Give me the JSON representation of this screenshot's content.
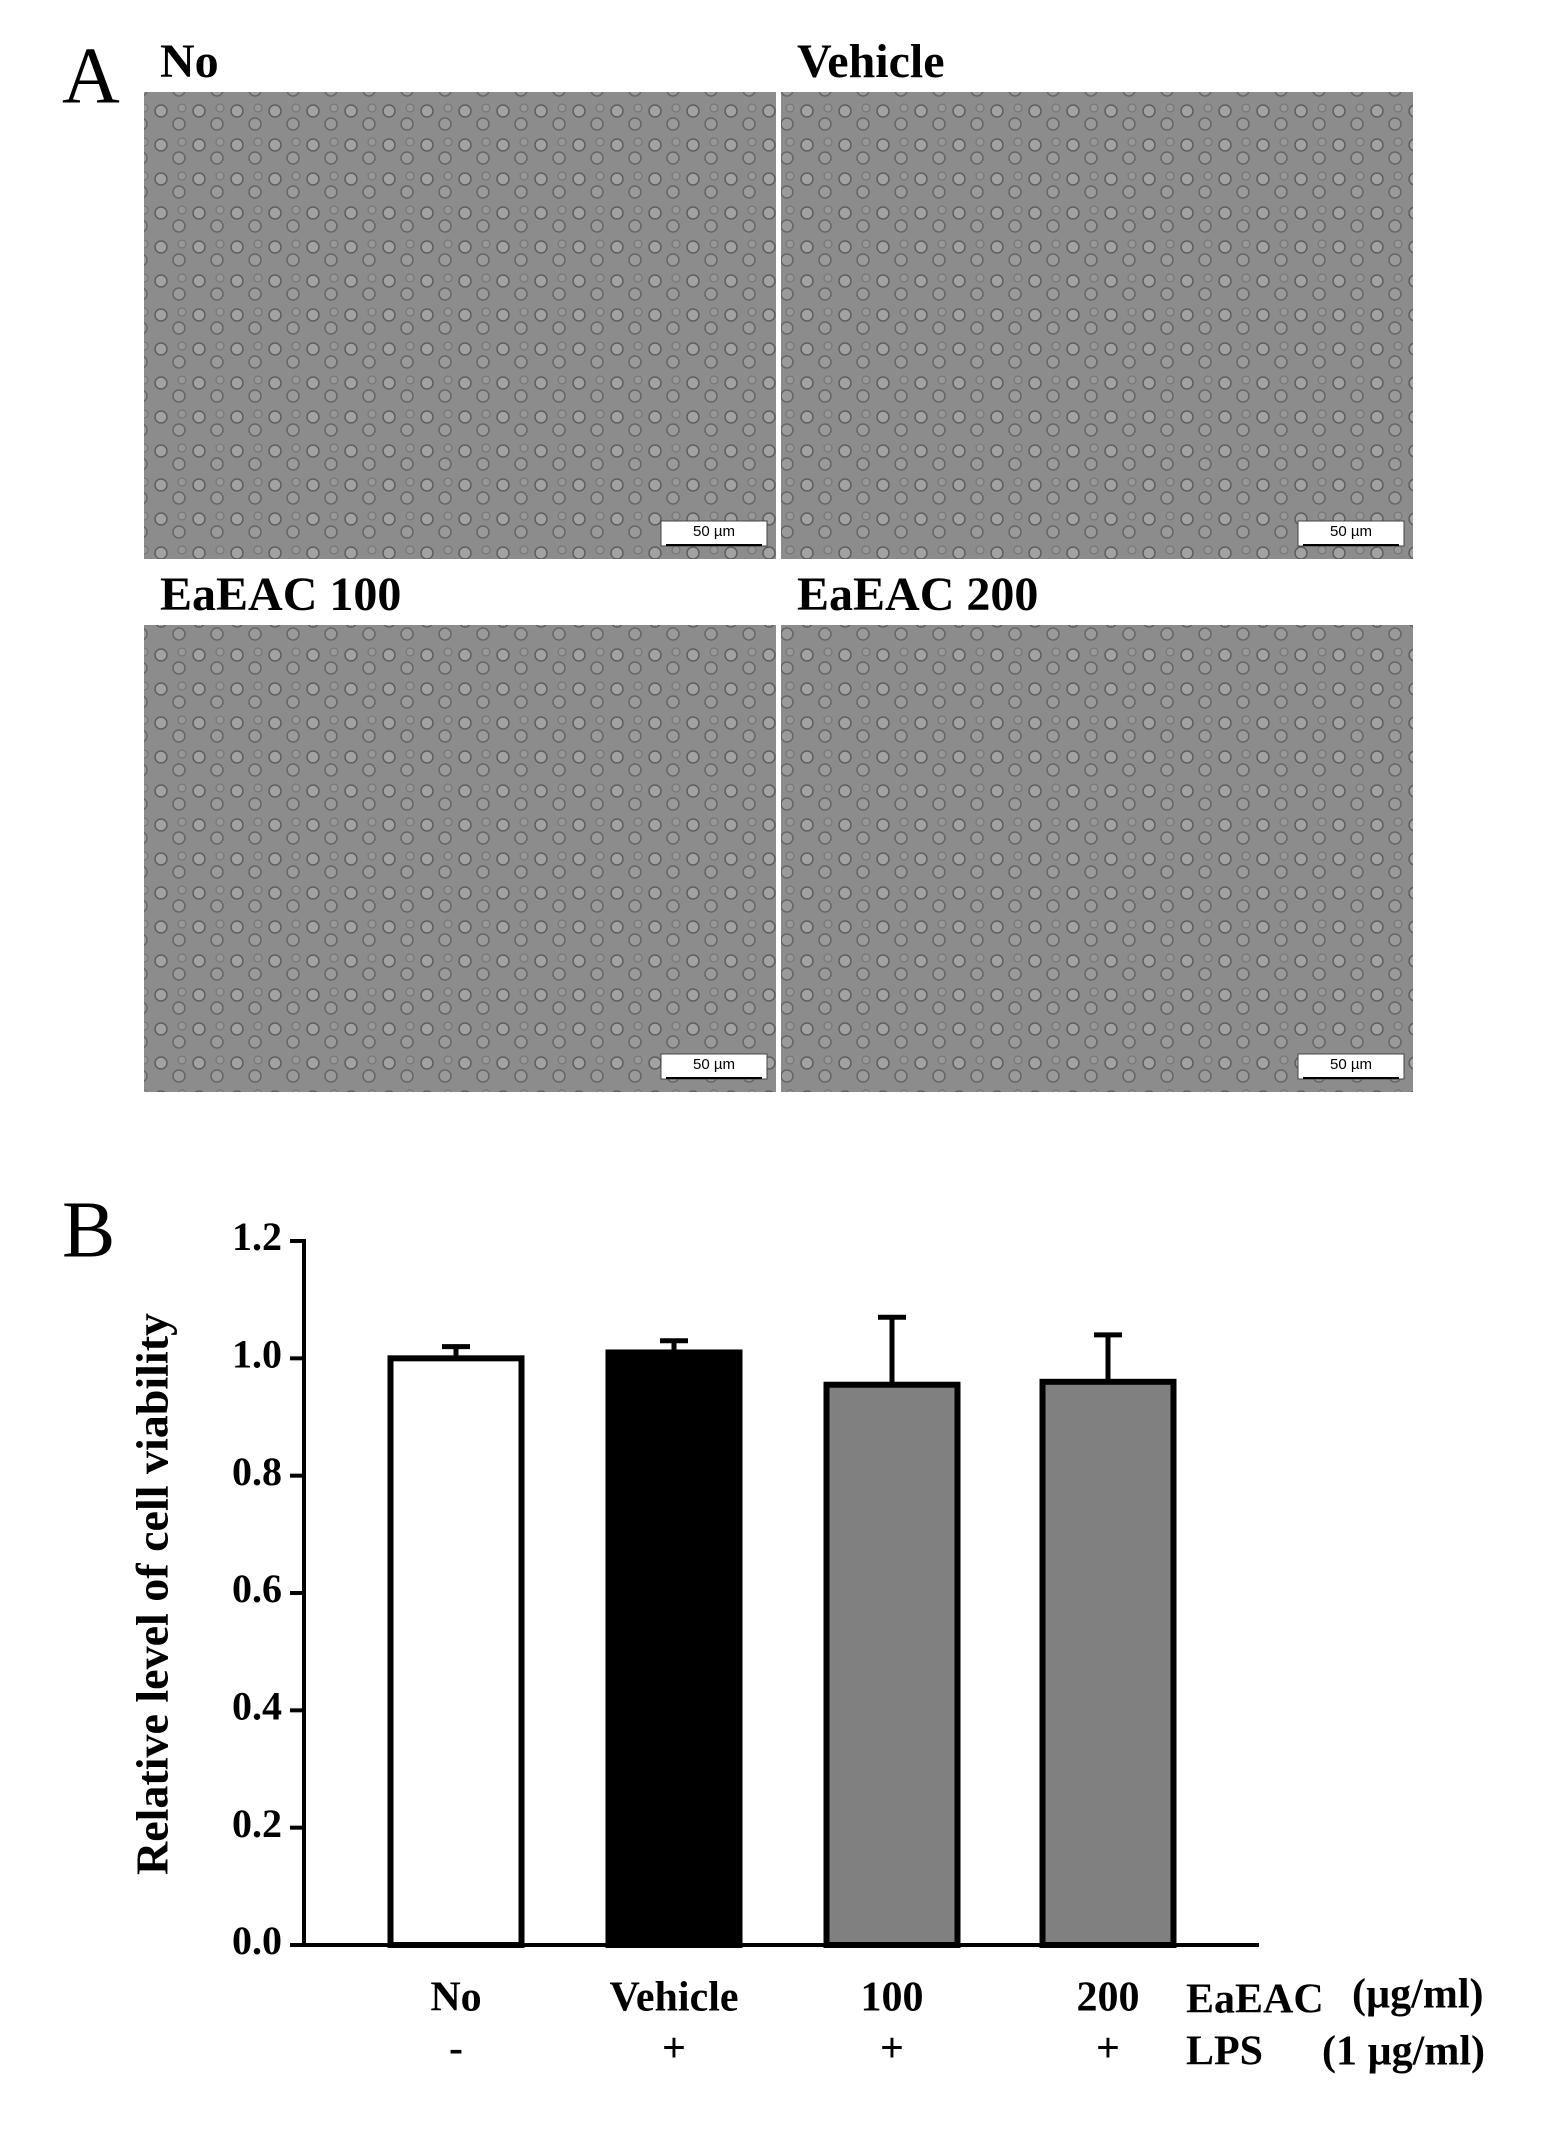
{
  "panel_a": {
    "label": "A",
    "images": [
      {
        "label": "No",
        "scale_bar": "50 µm"
      },
      {
        "label": "Vehicle",
        "scale_bar": "50 µm"
      },
      {
        "label": "EaEAC 100",
        "scale_bar": "50 µm"
      },
      {
        "label": "EaEAC 200",
        "scale_bar": "50 µm"
      }
    ]
  },
  "panel_b": {
    "label": "B"
  },
  "chart_data": {
    "type": "bar",
    "ylabel": "Relative level of cell viability",
    "categories": [
      "No",
      "Vehicle",
      "100",
      "200"
    ],
    "categories_row2": [
      "-",
      "+",
      "+",
      "+"
    ],
    "row_labels": [
      [
        "EaEAC",
        "(µg/ml)"
      ],
      [
        "LPS",
        "(1 µg/ml)"
      ]
    ],
    "values": [
      1.0,
      1.01,
      0.955,
      0.96
    ],
    "errors": [
      0.02,
      0.02,
      0.115,
      0.08
    ],
    "colors": [
      "#ffffff",
      "#000000",
      "#808080",
      "#808080"
    ],
    "ylim": [
      0,
      1.2
    ],
    "yticks": [
      {
        "value": 0,
        "label": "0.0"
      },
      0.2,
      0.4,
      0.6,
      0.8,
      {
        "value": 1.0,
        "label": "1.0"
      },
      1.2
    ]
  }
}
